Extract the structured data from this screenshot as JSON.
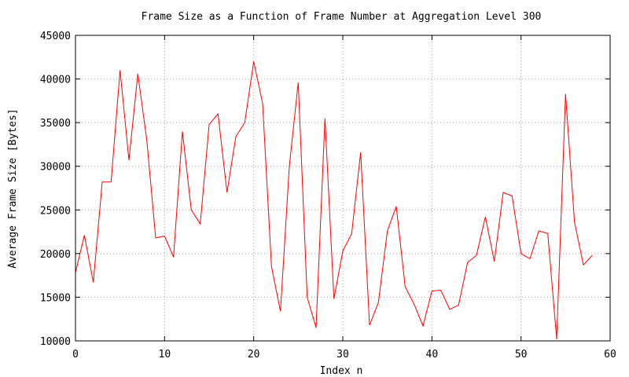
{
  "chart_data": {
    "type": "line",
    "title": "Frame Size as a Function of Frame Number at Aggregation Level 300",
    "xlabel": "Index n",
    "ylabel": "Average Frame Size [Bytes]",
    "xlim": [
      0,
      60
    ],
    "ylim": [
      10000,
      45000
    ],
    "xticks": [
      0,
      10,
      20,
      30,
      40,
      50,
      60
    ],
    "yticks": [
      10000,
      15000,
      20000,
      25000,
      30000,
      35000,
      40000,
      45000
    ],
    "grid": true,
    "legend": "none",
    "series": [
      {
        "color": "#ff0000",
        "x": [
          0,
          1,
          2,
          3,
          4,
          5,
          6,
          7,
          8,
          9,
          10,
          11,
          12,
          13,
          14,
          15,
          16,
          17,
          18,
          19,
          20,
          21,
          22,
          23,
          24,
          25,
          26,
          27,
          28,
          29,
          30,
          31,
          32,
          33,
          34,
          35,
          36,
          37,
          38,
          39,
          40,
          41,
          42,
          43,
          44,
          45,
          46,
          47,
          48,
          49,
          50,
          51,
          52,
          53,
          54,
          55,
          56,
          57,
          58
        ],
        "values": [
          17800,
          22100,
          16700,
          28200,
          28200,
          41000,
          30700,
          40600,
          33000,
          21800,
          22000,
          19600,
          34000,
          25000,
          23400,
          34800,
          36000,
          27000,
          33400,
          35000,
          42000,
          37200,
          18500,
          13400,
          30000,
          39600,
          15000,
          11500,
          35500,
          14800,
          20300,
          22300,
          31600,
          11800,
          14400,
          22600,
          25400,
          16200,
          14200,
          11700,
          15700,
          15800,
          13600,
          14100,
          19000,
          19800,
          24200,
          19100,
          27000,
          26600,
          20000,
          19400,
          22600,
          22300,
          10200,
          38300,
          23600,
          18700,
          19800
        ]
      }
    ]
  }
}
